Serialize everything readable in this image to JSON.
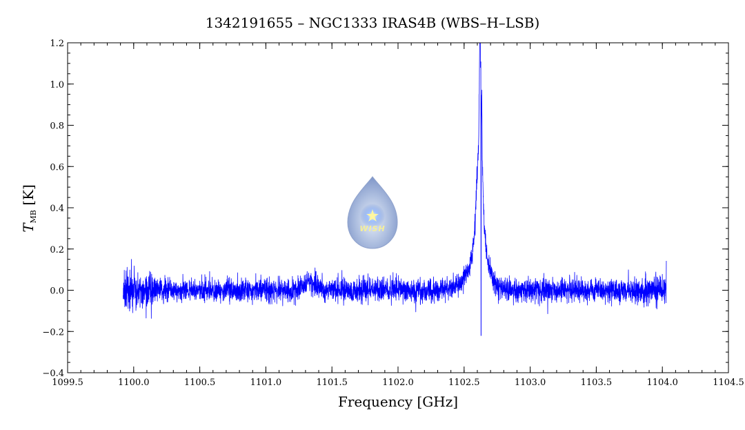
{
  "chart_data": {
    "type": "line",
    "title": "1342191655 – NGC1333 IRAS4B (WBS–H–LSB)",
    "xlabel": "Frequency [GHz]",
    "ylabel": {
      "symbol": "T",
      "subscript": "MB",
      "unit": "[K]"
    },
    "xlim": [
      1099.5,
      1104.5
    ],
    "ylim": [
      -0.4,
      1.2
    ],
    "x_ticks": [
      1099.5,
      1100.0,
      1100.5,
      1101.0,
      1101.5,
      1102.0,
      1102.5,
      1103.0,
      1103.5,
      1104.0,
      1104.5
    ],
    "x_tick_labels": [
      "1099.5",
      "1100.0",
      "1100.5",
      "1101.0",
      "1101.5",
      "1102.0",
      "1102.5",
      "1103.0",
      "1103.5",
      "1104.0",
      "1104.5"
    ],
    "y_ticks": [
      -0.4,
      -0.2,
      0.0,
      0.2,
      0.4,
      0.6,
      0.8,
      1.0,
      1.2
    ],
    "y_tick_labels": [
      "−0.4",
      "−0.2",
      "0.0",
      "0.2",
      "0.4",
      "0.6",
      "0.8",
      "1.0",
      "1.2"
    ],
    "x_minor_step": 0.1,
    "y_minor_step": 0.05,
    "grid": false,
    "series": [
      {
        "color": "#0000ff",
        "x_range": [
          1099.92,
          1104.03
        ],
        "noise_rms": 0.028,
        "features": [
          {
            "kind": "emission",
            "center": 1102.625,
            "peak": 1.08
          },
          {
            "kind": "wing",
            "center": 1102.62,
            "peak": 0.7
          },
          {
            "kind": "absorption",
            "center": 1102.628,
            "depth": -0.22
          },
          {
            "kind": "emission",
            "center": 1101.33,
            "peak": 0.08
          }
        ],
        "sample_points": [
          [
            1099.93,
            0.02
          ],
          [
            1100.0,
            0.0
          ],
          [
            1100.5,
            0.01
          ],
          [
            1101.0,
            0.0
          ],
          [
            1101.3,
            0.08
          ],
          [
            1101.5,
            0.01
          ],
          [
            1102.0,
            0.0
          ],
          [
            1102.45,
            0.03
          ],
          [
            1102.55,
            0.15
          ],
          [
            1102.59,
            0.55
          ],
          [
            1102.615,
            0.7
          ],
          [
            1102.625,
            1.08
          ],
          [
            1102.628,
            -0.22
          ],
          [
            1102.64,
            0.6
          ],
          [
            1102.67,
            0.25
          ],
          [
            1102.72,
            0.05
          ],
          [
            1103.0,
            0.0
          ],
          [
            1103.5,
            0.0
          ],
          [
            1104.03,
            0.0
          ]
        ]
      }
    ]
  },
  "logo": {
    "text": "WISH"
  }
}
